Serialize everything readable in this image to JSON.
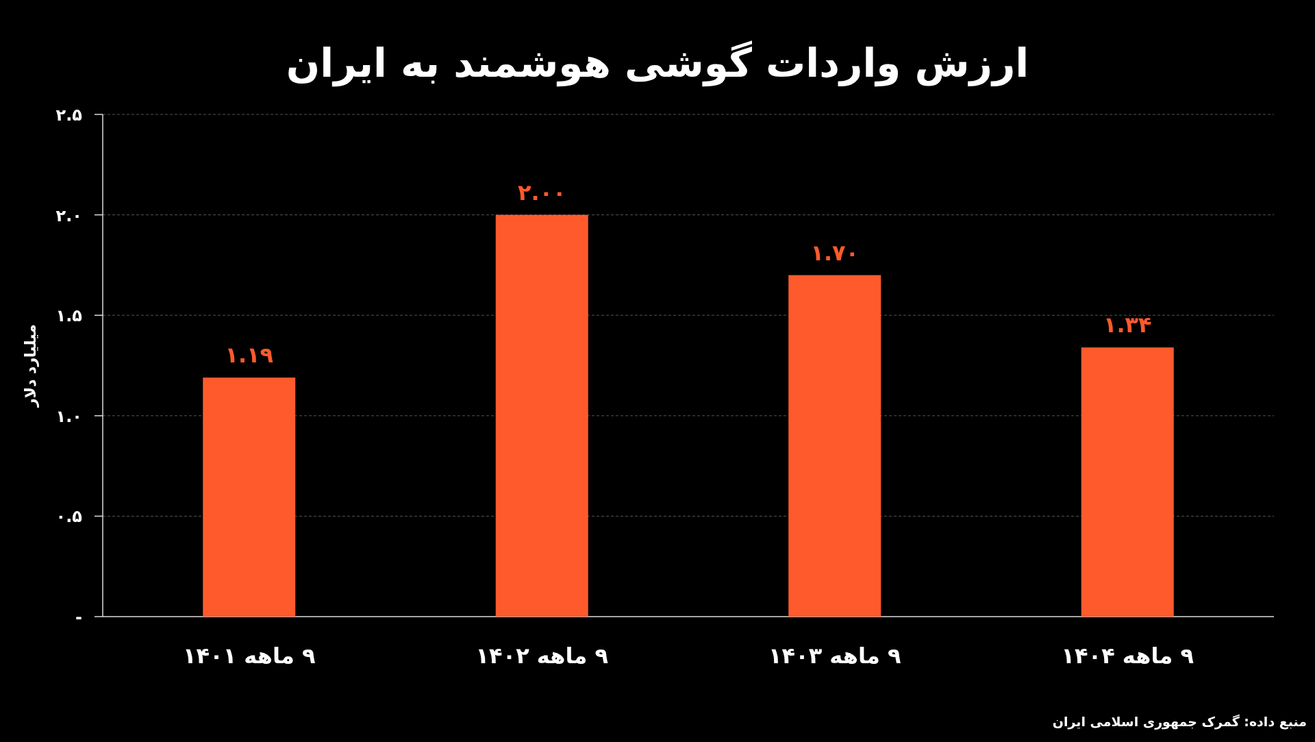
{
  "chart_data": {
    "type": "bar",
    "title": "ارزش واردات گوشی هوشمند به ایران",
    "ylabel": "میلیارد دلار",
    "categories": [
      "۹ ماهه ۱۴۰۱",
      "۹ ماهه ۱۴۰۲",
      "۹ ماهه ۱۴۰۳",
      "۹ ماهه ۱۴۰۴"
    ],
    "values": [
      1.19,
      2.0,
      1.7,
      1.34
    ],
    "value_labels": [
      "۱.۱۹",
      "۲.۰۰",
      "۱.۷۰",
      "۱.۳۴"
    ],
    "color": "#ff5a2c",
    "ylim": [
      0,
      2.5
    ],
    "yticks": [
      {
        "value": 0,
        "label": "-"
      },
      {
        "value": 0.5,
        "label": "۰.۵"
      },
      {
        "value": 1,
        "label": "۱.۰"
      },
      {
        "value": 1.5,
        "label": "۱.۵"
      },
      {
        "value": 2,
        "label": "۲.۰"
      },
      {
        "value": 2.5,
        "label": "۲.۵"
      }
    ],
    "grid": "y",
    "annotations": [
      "منبع داده:  گمرک جمهوری اسلامی ایران"
    ]
  }
}
